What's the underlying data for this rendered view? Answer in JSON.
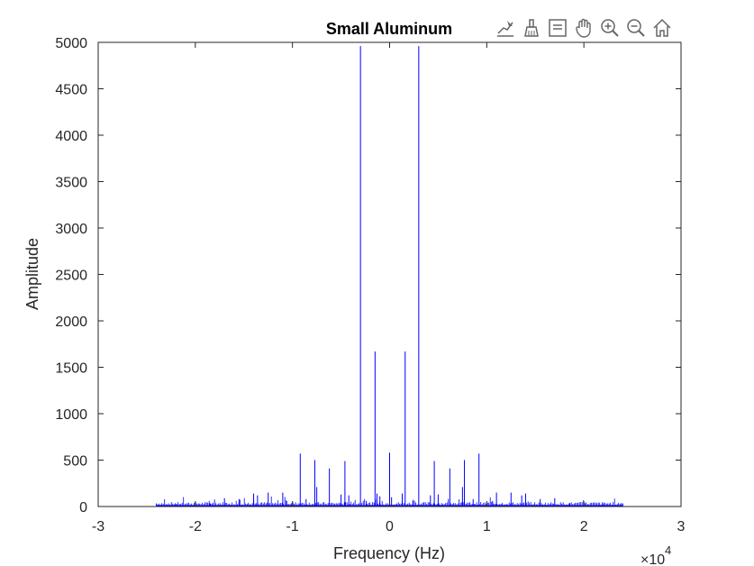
{
  "toolbar": {
    "icons": [
      "data-tips-icon",
      "brush-icon",
      "legend-icon",
      "pan-icon",
      "zoom-in-icon",
      "zoom-out-icon",
      "home-icon"
    ]
  },
  "chart_data": {
    "type": "line",
    "title": "Small Aluminum",
    "xlabel": "Frequency (Hz)",
    "ylabel": "Amplitude",
    "x_multiplier": "×10",
    "x_multiplier_exp": "4",
    "xlim": [
      -3,
      3
    ],
    "ylim": [
      0,
      5000
    ],
    "xticks": [
      -3,
      -2,
      -1,
      0,
      1,
      2,
      3
    ],
    "xtick_labels": [
      "-3",
      "-2",
      "-1",
      "0",
      "1",
      "2",
      "3"
    ],
    "yticks": [
      0,
      500,
      1000,
      1500,
      2000,
      2500,
      3000,
      3500,
      4000,
      4500,
      5000
    ],
    "ytick_labels": [
      "0",
      "500",
      "1000",
      "1500",
      "2000",
      "2500",
      "3000",
      "3500",
      "4000",
      "4500",
      "5000"
    ],
    "grid": false,
    "line_color": "#0000ff",
    "data_range_x": [
      -2.4,
      2.4
    ],
    "peaks": [
      {
        "x": -2.4,
        "y": 30
      },
      {
        "x": -2.2,
        "y": 25
      },
      {
        "x": -2.0,
        "y": 40
      },
      {
        "x": -1.85,
        "y": 35
      },
      {
        "x": -1.7,
        "y": 90
      },
      {
        "x": -1.55,
        "y": 80
      },
      {
        "x": -1.4,
        "y": 140
      },
      {
        "x": -1.36,
        "y": 120
      },
      {
        "x": -1.25,
        "y": 150
      },
      {
        "x": -1.1,
        "y": 150
      },
      {
        "x": -1.06,
        "y": 60
      },
      {
        "x": -0.92,
        "y": 570
      },
      {
        "x": -0.86,
        "y": 80
      },
      {
        "x": -0.77,
        "y": 500
      },
      {
        "x": -0.75,
        "y": 210
      },
      {
        "x": -0.62,
        "y": 410
      },
      {
        "x": -0.5,
        "y": 130
      },
      {
        "x": -0.46,
        "y": 490
      },
      {
        "x": -0.42,
        "y": 120
      },
      {
        "x": -0.3,
        "y": 4960
      },
      {
        "x": -0.24,
        "y": 60
      },
      {
        "x": -0.15,
        "y": 1670
      },
      {
        "x": -0.13,
        "y": 140
      },
      {
        "x": -0.1,
        "y": 110
      },
      {
        "x": 0.0,
        "y": 580
      },
      {
        "x": 0.02,
        "y": 100
      },
      {
        "x": 0.13,
        "y": 140
      },
      {
        "x": 0.16,
        "y": 1670
      },
      {
        "x": 0.24,
        "y": 60
      },
      {
        "x": 0.3,
        "y": 4960
      },
      {
        "x": 0.42,
        "y": 120
      },
      {
        "x": 0.46,
        "y": 490
      },
      {
        "x": 0.5,
        "y": 130
      },
      {
        "x": 0.62,
        "y": 410
      },
      {
        "x": 0.75,
        "y": 210
      },
      {
        "x": 0.77,
        "y": 500
      },
      {
        "x": 0.86,
        "y": 80
      },
      {
        "x": 0.92,
        "y": 570
      },
      {
        "x": 1.06,
        "y": 60
      },
      {
        "x": 1.1,
        "y": 150
      },
      {
        "x": 1.25,
        "y": 150
      },
      {
        "x": 1.36,
        "y": 120
      },
      {
        "x": 1.4,
        "y": 140
      },
      {
        "x": 1.55,
        "y": 80
      },
      {
        "x": 1.7,
        "y": 90
      },
      {
        "x": 1.85,
        "y": 35
      },
      {
        "x": 2.0,
        "y": 40
      },
      {
        "x": 2.2,
        "y": 25
      },
      {
        "x": 2.4,
        "y": 30
      }
    ]
  }
}
